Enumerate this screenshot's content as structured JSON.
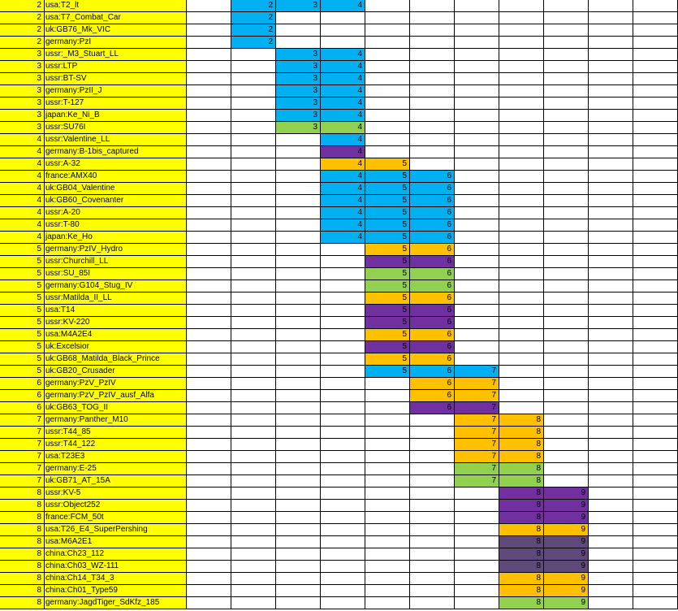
{
  "sheet": {
    "colors": {
      "yellow": "#ffff00",
      "blue": "#00b0f0",
      "green": "#92d050",
      "purple": "#7030a0",
      "orange": "#ffc000",
      "darkpurple": "#5f497a",
      "white": "#ffffff",
      "border": "#000000"
    },
    "rows": [
      {
        "tier": "2",
        "name": "usa:T2_lt",
        "cells": [
          {
            "col": 0,
            "value": "2",
            "color": "blue"
          },
          {
            "col": 1,
            "value": "3",
            "color": "blue"
          },
          {
            "col": 2,
            "value": "4",
            "color": "blue"
          }
        ]
      },
      {
        "tier": "2",
        "name": "usa:T7_Combat_Car",
        "cells": [
          {
            "col": 0,
            "value": "2",
            "color": "blue"
          }
        ]
      },
      {
        "tier": "2",
        "name": "uk:GB76_Mk_VIC",
        "cells": [
          {
            "col": 0,
            "value": "2",
            "color": "blue"
          }
        ]
      },
      {
        "tier": "2",
        "name": "germany:PzI",
        "cells": [
          {
            "col": 0,
            "value": "2",
            "color": "blue"
          }
        ]
      },
      {
        "tier": "3",
        "name": "ussr:_M3_Stuart_LL",
        "cells": [
          {
            "col": 1,
            "value": "3",
            "color": "blue"
          },
          {
            "col": 2,
            "value": "4",
            "color": "blue"
          }
        ]
      },
      {
        "tier": "3",
        "name": "ussr:LTP",
        "cells": [
          {
            "col": 1,
            "value": "3",
            "color": "blue"
          },
          {
            "col": 2,
            "value": "4",
            "color": "blue"
          }
        ]
      },
      {
        "tier": "3",
        "name": "ussr:BT-SV",
        "cells": [
          {
            "col": 1,
            "value": "3",
            "color": "blue"
          },
          {
            "col": 2,
            "value": "4",
            "color": "blue"
          }
        ]
      },
      {
        "tier": "3",
        "name": "germany:PzII_J",
        "cells": [
          {
            "col": 1,
            "value": "3",
            "color": "blue"
          },
          {
            "col": 2,
            "value": "4",
            "color": "blue"
          }
        ]
      },
      {
        "tier": "3",
        "name": "ussr:T-127",
        "cells": [
          {
            "col": 1,
            "value": "3",
            "color": "blue"
          },
          {
            "col": 2,
            "value": "4",
            "color": "blue"
          }
        ]
      },
      {
        "tier": "3",
        "name": "japan:Ke_Ni_B",
        "cells": [
          {
            "col": 1,
            "value": "3",
            "color": "blue"
          },
          {
            "col": 2,
            "value": "4",
            "color": "blue"
          }
        ]
      },
      {
        "tier": "3",
        "name": "ussr:SU76I",
        "cells": [
          {
            "col": 1,
            "value": "3",
            "color": "green"
          },
          {
            "col": 2,
            "value": "4",
            "color": "green"
          }
        ]
      },
      {
        "tier": "4",
        "name": "ussr:Valentine_LL",
        "cells": [
          {
            "col": 2,
            "value": "4",
            "color": "blue"
          }
        ]
      },
      {
        "tier": "4",
        "name": "germany:B-1bis_captured",
        "cells": [
          {
            "col": 2,
            "value": "4",
            "color": "purple"
          }
        ]
      },
      {
        "tier": "4",
        "name": "ussr:A-32",
        "cells": [
          {
            "col": 2,
            "value": "4",
            "color": "orange"
          },
          {
            "col": 3,
            "value": "5",
            "color": "orange"
          }
        ]
      },
      {
        "tier": "4",
        "name": "france:AMX40",
        "cells": [
          {
            "col": 2,
            "value": "4",
            "color": "blue"
          },
          {
            "col": 3,
            "value": "5",
            "color": "blue"
          },
          {
            "col": 4,
            "value": "6",
            "color": "blue"
          }
        ]
      },
      {
        "tier": "4",
        "name": "uk:GB04_Valentine",
        "cells": [
          {
            "col": 2,
            "value": "4",
            "color": "blue"
          },
          {
            "col": 3,
            "value": "5",
            "color": "blue"
          },
          {
            "col": 4,
            "value": "6",
            "color": "blue"
          }
        ]
      },
      {
        "tier": "4",
        "name": "uk:GB60_Covenanter",
        "cells": [
          {
            "col": 2,
            "value": "4",
            "color": "blue"
          },
          {
            "col": 3,
            "value": "5",
            "color": "blue"
          },
          {
            "col": 4,
            "value": "6",
            "color": "blue"
          }
        ]
      },
      {
        "tier": "4",
        "name": "ussr:A-20",
        "cells": [
          {
            "col": 2,
            "value": "4",
            "color": "blue"
          },
          {
            "col": 3,
            "value": "5",
            "color": "blue"
          },
          {
            "col": 4,
            "value": "6",
            "color": "blue"
          }
        ]
      },
      {
        "tier": "4",
        "name": "ussr:T-80",
        "cells": [
          {
            "col": 2,
            "value": "4",
            "color": "blue"
          },
          {
            "col": 3,
            "value": "5",
            "color": "blue"
          },
          {
            "col": 4,
            "value": "6",
            "color": "blue"
          }
        ]
      },
      {
        "tier": "4",
        "name": "japan:Ke_Ho",
        "cells": [
          {
            "col": 2,
            "value": "4",
            "color": "blue"
          },
          {
            "col": 3,
            "value": "5",
            "color": "blue"
          },
          {
            "col": 4,
            "value": "6",
            "color": "blue"
          }
        ]
      },
      {
        "tier": "5",
        "name": "germany:PzIV_Hydro",
        "cells": [
          {
            "col": 3,
            "value": "5",
            "color": "orange"
          },
          {
            "col": 4,
            "value": "6",
            "color": "orange"
          }
        ]
      },
      {
        "tier": "5",
        "name": "ussr:Churchill_LL",
        "cells": [
          {
            "col": 3,
            "value": "5",
            "color": "purple"
          },
          {
            "col": 4,
            "value": "6",
            "color": "purple"
          }
        ]
      },
      {
        "tier": "5",
        "name": "ussr:SU_85I",
        "cells": [
          {
            "col": 3,
            "value": "5",
            "color": "green"
          },
          {
            "col": 4,
            "value": "6",
            "color": "green"
          }
        ]
      },
      {
        "tier": "5",
        "name": "germany:G104_Stug_IV",
        "cells": [
          {
            "col": 3,
            "value": "5",
            "color": "green"
          },
          {
            "col": 4,
            "value": "6",
            "color": "green"
          }
        ]
      },
      {
        "tier": "5",
        "name": "ussr:Matilda_II_LL",
        "cells": [
          {
            "col": 3,
            "value": "5",
            "color": "orange"
          },
          {
            "col": 4,
            "value": "6",
            "color": "orange"
          }
        ]
      },
      {
        "tier": "5",
        "name": "usa:T14",
        "cells": [
          {
            "col": 3,
            "value": "5",
            "color": "purple"
          },
          {
            "col": 4,
            "value": "6",
            "color": "purple"
          }
        ]
      },
      {
        "tier": "5",
        "name": "ussr:KV-220",
        "cells": [
          {
            "col": 3,
            "value": "5",
            "color": "purple"
          },
          {
            "col": 4,
            "value": "6",
            "color": "purple"
          }
        ]
      },
      {
        "tier": "5",
        "name": "usa:M4A2E4",
        "cells": [
          {
            "col": 3,
            "value": "5",
            "color": "orange"
          },
          {
            "col": 4,
            "value": "6",
            "color": "orange"
          }
        ]
      },
      {
        "tier": "5",
        "name": "uk:Excelsior",
        "cells": [
          {
            "col": 3,
            "value": "5",
            "color": "purple"
          },
          {
            "col": 4,
            "value": "6",
            "color": "purple"
          }
        ]
      },
      {
        "tier": "5",
        "name": "uk:GB68_Matilda_Black_Prince",
        "cells": [
          {
            "col": 3,
            "value": "5",
            "color": "orange"
          },
          {
            "col": 4,
            "value": "6",
            "color": "orange"
          }
        ]
      },
      {
        "tier": "5",
        "name": "uk:GB20_Crusader",
        "cells": [
          {
            "col": 3,
            "value": "5",
            "color": "blue"
          },
          {
            "col": 4,
            "value": "6",
            "color": "blue"
          },
          {
            "col": 5,
            "value": "7",
            "color": "blue"
          }
        ]
      },
      {
        "tier": "6",
        "name": "germany:PzV_PzIV",
        "cells": [
          {
            "col": 4,
            "value": "6",
            "color": "orange"
          },
          {
            "col": 5,
            "value": "7",
            "color": "orange"
          }
        ]
      },
      {
        "tier": "6",
        "name": "germany:PzV_PzIV_ausf_Alfa",
        "cells": [
          {
            "col": 4,
            "value": "6",
            "color": "orange"
          },
          {
            "col": 5,
            "value": "7",
            "color": "orange"
          }
        ]
      },
      {
        "tier": "6",
        "name": "uk:GB63_TOG_II",
        "cells": [
          {
            "col": 4,
            "value": "6",
            "color": "purple"
          },
          {
            "col": 5,
            "value": "7",
            "color": "purple"
          }
        ]
      },
      {
        "tier": "7",
        "name": "germany:Panther_M10",
        "cells": [
          {
            "col": 5,
            "value": "7",
            "color": "orange"
          },
          {
            "col": 6,
            "value": "8",
            "color": "orange"
          }
        ]
      },
      {
        "tier": "7",
        "name": "ussr:T44_85",
        "cells": [
          {
            "col": 5,
            "value": "7",
            "color": "orange"
          },
          {
            "col": 6,
            "value": "8",
            "color": "orange"
          }
        ]
      },
      {
        "tier": "7",
        "name": "ussr:T44_122",
        "cells": [
          {
            "col": 5,
            "value": "7",
            "color": "orange"
          },
          {
            "col": 6,
            "value": "8",
            "color": "orange"
          }
        ]
      },
      {
        "tier": "7",
        "name": "usa:T23E3",
        "cells": [
          {
            "col": 5,
            "value": "7",
            "color": "orange"
          },
          {
            "col": 6,
            "value": "8",
            "color": "orange"
          }
        ]
      },
      {
        "tier": "7",
        "name": "germany:E-25",
        "cells": [
          {
            "col": 5,
            "value": "7",
            "color": "green"
          },
          {
            "col": 6,
            "value": "8",
            "color": "green"
          }
        ]
      },
      {
        "tier": "7",
        "name": "uk:GB71_AT_15A",
        "cells": [
          {
            "col": 5,
            "value": "7",
            "color": "green"
          },
          {
            "col": 6,
            "value": "8",
            "color": "green"
          }
        ]
      },
      {
        "tier": "8",
        "name": "ussr:KV-5",
        "cells": [
          {
            "col": 6,
            "value": "8",
            "color": "purple"
          },
          {
            "col": 7,
            "value": "9",
            "color": "purple"
          }
        ]
      },
      {
        "tier": "8",
        "name": "ussr:Object252",
        "cells": [
          {
            "col": 6,
            "value": "8",
            "color": "purple"
          },
          {
            "col": 7,
            "value": "9",
            "color": "purple"
          }
        ]
      },
      {
        "tier": "8",
        "name": "france:FCM_50t",
        "cells": [
          {
            "col": 6,
            "value": "8",
            "color": "purple"
          },
          {
            "col": 7,
            "value": "9",
            "color": "purple"
          }
        ]
      },
      {
        "tier": "8",
        "name": "usa:T26_E4_SuperPershing",
        "cells": [
          {
            "col": 6,
            "value": "8",
            "color": "orange"
          },
          {
            "col": 7,
            "value": "9",
            "color": "orange"
          }
        ]
      },
      {
        "tier": "8",
        "name": "usa:M6A2E1",
        "cells": [
          {
            "col": 6,
            "value": "8",
            "color": "darkpurple"
          },
          {
            "col": 7,
            "value": "9",
            "color": "darkpurple"
          }
        ]
      },
      {
        "tier": "8",
        "name": "china:Ch23_112",
        "cells": [
          {
            "col": 6,
            "value": "8",
            "color": "darkpurple"
          },
          {
            "col": 7,
            "value": "9",
            "color": "darkpurple"
          }
        ]
      },
      {
        "tier": "8",
        "name": "china:Ch03_WZ-111",
        "cells": [
          {
            "col": 6,
            "value": "8",
            "color": "darkpurple"
          },
          {
            "col": 7,
            "value": "9",
            "color": "darkpurple"
          }
        ]
      },
      {
        "tier": "8",
        "name": "china:Ch14_T34_3",
        "cells": [
          {
            "col": 6,
            "value": "8",
            "color": "orange"
          },
          {
            "col": 7,
            "value": "9",
            "color": "orange"
          }
        ]
      },
      {
        "tier": "8",
        "name": "china:Ch01_Type59",
        "cells": [
          {
            "col": 6,
            "value": "8",
            "color": "orange"
          },
          {
            "col": 7,
            "value": "9",
            "color": "orange"
          }
        ]
      },
      {
        "tier": "8",
        "name": "germany:JagdTiger_SdKfz_185",
        "cells": [
          {
            "col": 6,
            "value": "8",
            "color": "green"
          },
          {
            "col": 7,
            "value": "9",
            "color": "green"
          }
        ]
      }
    ]
  }
}
